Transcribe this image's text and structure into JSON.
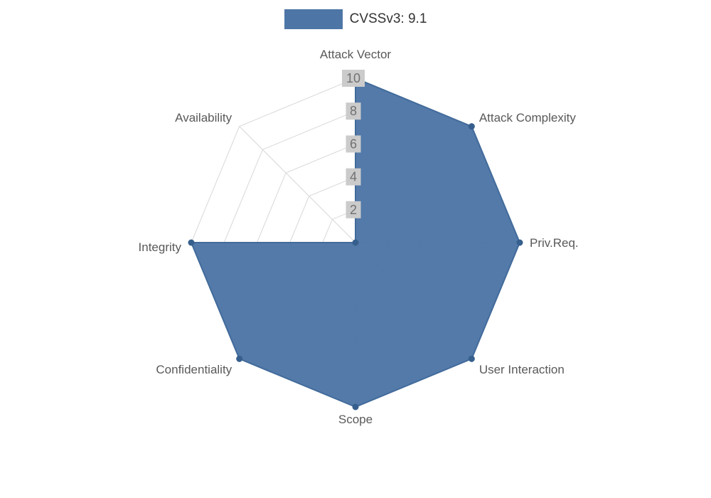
{
  "legend": {
    "label": "CVSSv3: 9.1"
  },
  "chart_data": {
    "type": "radar",
    "title": "CVSSv3: 9.1",
    "categories": [
      "Attack Vector",
      "Attack Complexity",
      "Priv.Req.",
      "User Interaction",
      "Scope",
      "Confidentiality",
      "Integrity",
      "Availability"
    ],
    "series": [
      {
        "name": "CVSSv3: 9.1",
        "values": [
          10,
          10,
          10,
          10,
          10,
          10,
          10,
          0
        ]
      }
    ],
    "ticks": [
      2,
      4,
      6,
      8,
      10
    ],
    "rmin": 0,
    "rmax": 10,
    "grid": true,
    "legend_position": "top",
    "colors": {
      "fill": "#4d76a6",
      "border": "#426b9b",
      "point": "#365f8d",
      "grid": "#d8d8d8",
      "axis_label": "#595959",
      "tick_text": "#707070",
      "tick_backdrop": "#cbcbcb"
    }
  }
}
